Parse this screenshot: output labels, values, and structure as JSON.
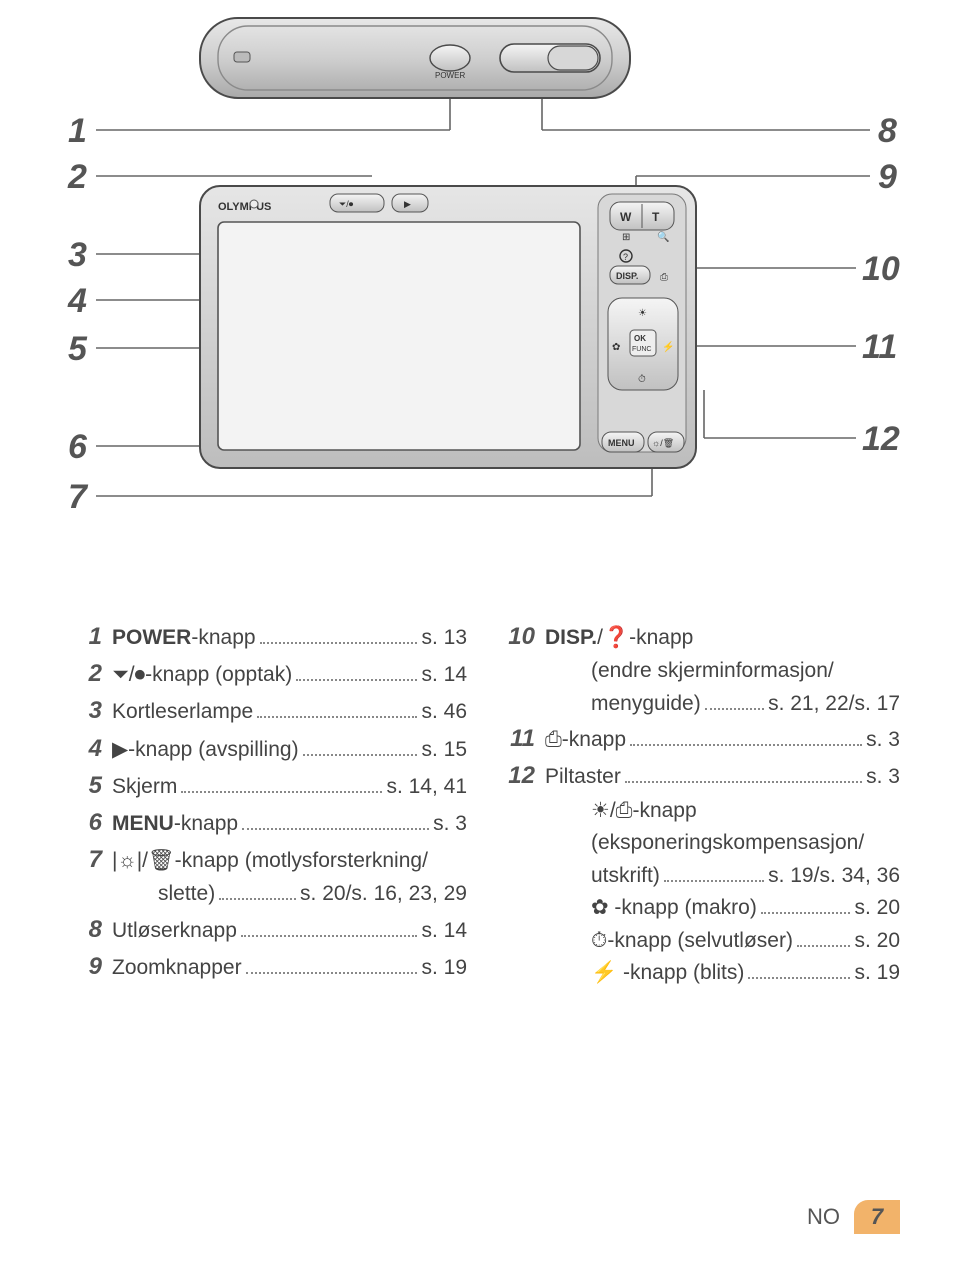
{
  "colors": {
    "text": "#444444",
    "muted": "#555555",
    "line": "#666666",
    "line_light": "#9a9a9a",
    "camera_light": "#eeeeee",
    "camera_mid": "#cdcdcd",
    "camera_dark": "#9d9d9d",
    "camera_border": "#4a4a4a",
    "screen": "#f3f3f3",
    "page_accent": "#f2b36a"
  },
  "callouts": {
    "left": [
      {
        "n": "1"
      },
      {
        "n": "2"
      },
      {
        "n": "3"
      },
      {
        "n": "4"
      },
      {
        "n": "5"
      },
      {
        "n": "6"
      },
      {
        "n": "7"
      }
    ],
    "right": [
      {
        "n": "8"
      },
      {
        "n": "9"
      },
      {
        "n": "10"
      },
      {
        "n": "11"
      },
      {
        "n": "12"
      }
    ]
  },
  "camera_labels": {
    "power": "POWER",
    "brand": "OLYMPUS",
    "w": "W",
    "t": "T",
    "disp": "DISP.",
    "ok": "OK",
    "func": "FUNC",
    "menu": "MENU"
  },
  "legend": {
    "col1": [
      {
        "n": "1",
        "label": "POWER-knapp",
        "pg": "s. 13",
        "bold_first": "POWER"
      },
      {
        "n": "2",
        "label": "⏷/⏺-knapp (opptak)",
        "pg": "s. 14"
      },
      {
        "n": "3",
        "label": "Kortleserlampe",
        "pg": "s. 46"
      },
      {
        "n": "4",
        "label": "▶-knapp (avspilling)",
        "pg": "s. 15"
      },
      {
        "n": "5",
        "label": "Skjerm",
        "pg": "s. 14, 41"
      },
      {
        "n": "6",
        "label": "MENU-knapp",
        "pg": "s. 3",
        "bold_first": "MENU"
      },
      {
        "n": "7",
        "label": "|☼|/🗑-knapp (motlysforsterkning/",
        "pg": ""
      },
      {
        "n": "",
        "label": "slette)",
        "pg": "s. 20/s. 16, 23, 29",
        "sub": true
      },
      {
        "n": "8",
        "label": "Utløserknapp",
        "pg": "s. 14"
      },
      {
        "n": "9",
        "label": "Zoomknapper",
        "pg": "s. 19"
      }
    ],
    "col2": [
      {
        "n": "10",
        "label": "DISP./❓-knapp",
        "pg": "",
        "bold_first": "DISP."
      },
      {
        "n": "",
        "label": "(endre skjerminformasjon/",
        "pg": "",
        "sub": true
      },
      {
        "n": "",
        "label": "menyguide)",
        "pg": "s. 21, 22/s. 17",
        "sub": true
      },
      {
        "n": "11",
        "label": "⎙-knapp",
        "pg": "s. 3"
      },
      {
        "n": "12",
        "label": "Piltaster",
        "pg": "s. 3"
      },
      {
        "n": "",
        "label": "☀/⎙-knapp",
        "pg": "",
        "sub": true
      },
      {
        "n": "",
        "label": "(eksponeringskompensasjon/",
        "pg": "",
        "sub": true
      },
      {
        "n": "",
        "label": "utskrift)",
        "pg": "s. 19/s. 34, 36",
        "sub": true
      },
      {
        "n": "",
        "label": "✿ -knapp (makro)",
        "pg": "s. 20",
        "sub": true
      },
      {
        "n": "",
        "label": "⏱-knapp (selvutløser)",
        "pg": "s. 20",
        "sub": true
      },
      {
        "n": "",
        "label": "⚡ -knapp (blits)",
        "pg": "s. 19",
        "sub": true
      }
    ]
  },
  "footer": {
    "lang": "NO",
    "page": "7"
  }
}
